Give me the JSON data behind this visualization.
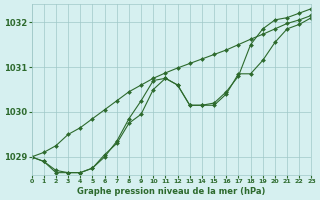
{
  "title": "Graphe pression niveau de la mer (hPa)",
  "background_color": "#d6f0f0",
  "grid_color": "#a0c8c8",
  "line_color": "#2d6a2d",
  "marker_color": "#2d6a2d",
  "xlim": [
    0,
    23
  ],
  "ylim": [
    1028.6,
    1032.4
  ],
  "yticks": [
    1029,
    1030,
    1031,
    1032
  ],
  "xticks": [
    0,
    1,
    2,
    3,
    4,
    5,
    6,
    7,
    8,
    9,
    10,
    11,
    12,
    13,
    14,
    15,
    16,
    17,
    18,
    19,
    20,
    21,
    22,
    23
  ],
  "series": [
    {
      "x": [
        0,
        1,
        2,
        3,
        4,
        5,
        6,
        7,
        8,
        9,
        10,
        11,
        12,
        13,
        14,
        15,
        16,
        17,
        18,
        19,
        20,
        21,
        22,
        23
      ],
      "y": [
        1029.0,
        1028.9,
        1028.7,
        1028.65,
        1028.65,
        1028.75,
        1029.0,
        1029.35,
        1029.85,
        1030.25,
        1030.7,
        1030.75,
        1030.6,
        1030.15,
        1030.15,
        1030.2,
        1030.45,
        1030.8,
        1031.5,
        1031.85,
        1032.05,
        1032.1,
        1032.2,
        1032.3
      ]
    },
    {
      "x": [
        0,
        1,
        2,
        3,
        4,
        5,
        6,
        7,
        8,
        9,
        10,
        11,
        12,
        13,
        14,
        15,
        16,
        17,
        18,
        19,
        20,
        21,
        22,
        23
      ],
      "y": [
        1029.0,
        1028.9,
        1028.65,
        1028.65,
        1028.65,
        1028.75,
        1029.05,
        1029.3,
        1029.75,
        1029.95,
        1030.5,
        1030.75,
        1030.6,
        1030.15,
        1030.15,
        1030.15,
        1030.4,
        1030.85,
        1030.85,
        1031.15,
        1031.55,
        1031.85,
        1031.95,
        1032.1
      ]
    },
    {
      "x": [
        0,
        1,
        2,
        3,
        4,
        5,
        6,
        7,
        8,
        9,
        10,
        11,
        12,
        13,
        14,
        15,
        16,
        17,
        18,
        19,
        20,
        21,
        22,
        23
      ],
      "y": [
        1029.0,
        1029.1,
        1029.25,
        1029.5,
        1029.65,
        1029.85,
        1030.05,
        1030.25,
        1030.45,
        1030.6,
        1030.75,
        1030.87,
        1030.98,
        1031.08,
        1031.18,
        1031.28,
        1031.38,
        1031.5,
        1031.62,
        1031.73,
        1031.85,
        1031.97,
        1032.05,
        1032.15
      ]
    }
  ]
}
